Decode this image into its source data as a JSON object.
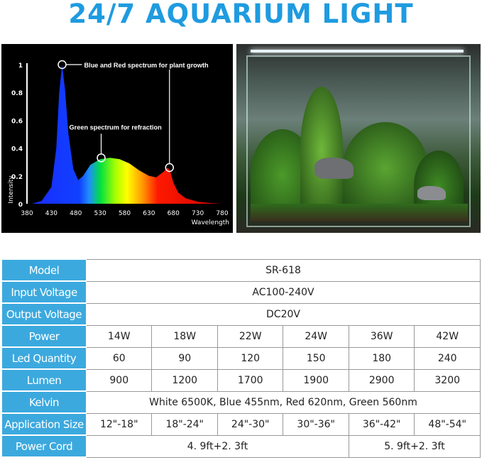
{
  "title": "24/7 AQUARIUM LIGHT",
  "chart_data": {
    "type": "area",
    "xlabel": "Wavelength",
    "ylabel": "Intensity",
    "xlim": [
      380,
      780
    ],
    "ylim": [
      0,
      1
    ],
    "x_ticks": [
      "380",
      "430",
      "480",
      "530",
      "580",
      "630",
      "680",
      "730",
      "780"
    ],
    "y_ticks": [
      "0",
      "0.2",
      "0.4",
      "0.6",
      "0.8",
      "1"
    ],
    "grid": false,
    "x": [
      390,
      410,
      430,
      440,
      446,
      452,
      458,
      465,
      475,
      485,
      495,
      510,
      530,
      550,
      570,
      590,
      610,
      630,
      645,
      660,
      668,
      673,
      680,
      690,
      705,
      730,
      760,
      780
    ],
    "y": [
      0,
      0.02,
      0.12,
      0.4,
      0.8,
      1.0,
      0.82,
      0.5,
      0.25,
      0.17,
      0.2,
      0.28,
      0.32,
      0.33,
      0.32,
      0.29,
      0.24,
      0.2,
      0.19,
      0.23,
      0.26,
      0.24,
      0.15,
      0.08,
      0.04,
      0.015,
      0.004,
      0
    ],
    "annotations": [
      {
        "text": "Blue and Red spectrum for plant growth",
        "points": [
          [
            452,
            1.0
          ],
          [
            672,
            0.26
          ]
        ]
      },
      {
        "text": "Green spectrum for refraction",
        "points": [
          [
            532,
            0.33
          ]
        ]
      }
    ]
  },
  "table": {
    "rows": [
      {
        "label": "Model",
        "cells": [
          {
            "text": "SR-618",
            "span": 6
          }
        ]
      },
      {
        "label": "Input Voltage",
        "cells": [
          {
            "text": "AC100-240V",
            "span": 6
          }
        ]
      },
      {
        "label": "Output Voltage",
        "cells": [
          {
            "text": "DC20V",
            "span": 6
          }
        ]
      },
      {
        "label": "Power",
        "cells": [
          {
            "text": "14W"
          },
          {
            "text": "18W"
          },
          {
            "text": "22W"
          },
          {
            "text": "24W"
          },
          {
            "text": "36W"
          },
          {
            "text": "42W"
          }
        ]
      },
      {
        "label": "Led Quantity",
        "cells": [
          {
            "text": "60"
          },
          {
            "text": "90"
          },
          {
            "text": "120"
          },
          {
            "text": "150"
          },
          {
            "text": "180"
          },
          {
            "text": "240"
          }
        ]
      },
      {
        "label": "Lumen",
        "cells": [
          {
            "text": "900"
          },
          {
            "text": "1200"
          },
          {
            "text": "1700"
          },
          {
            "text": "1900"
          },
          {
            "text": "2900"
          },
          {
            "text": "3200"
          }
        ]
      },
      {
        "label": "Kelvin",
        "cells": [
          {
            "text": "White 6500K,  Blue 455nm,  Red 620nm,  Green 560nm",
            "span": 6
          }
        ]
      },
      {
        "label": "Application Size",
        "cells": [
          {
            "text": "12\"-18\""
          },
          {
            "text": "18\"-24\""
          },
          {
            "text": "24\"-30\""
          },
          {
            "text": "30\"-36\""
          },
          {
            "text": "36\"-42\""
          },
          {
            "text": "48\"-54\""
          }
        ]
      },
      {
        "label": "Power Cord",
        "cells": [
          {
            "text": "4. 9ft+2. 3ft",
            "span": 4
          },
          {
            "text": "5. 9ft+2. 3ft",
            "span": 2
          }
        ]
      }
    ]
  },
  "colors": {
    "title": "#1f9be0",
    "label_bg": "#3ca9de"
  }
}
